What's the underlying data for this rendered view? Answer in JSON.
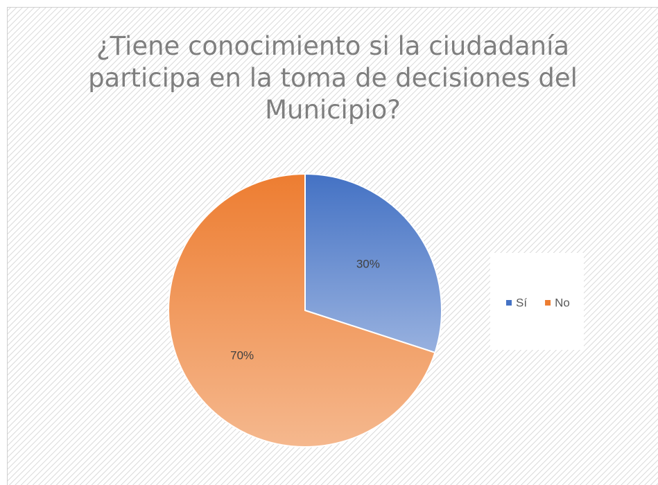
{
  "chart_data": {
    "type": "pie",
    "title": "¿Tiene conocimiento si la ciudadanía participa en la toma de decisiones del Municipio?",
    "categories": [
      "Sí",
      "No"
    ],
    "values": [
      30,
      70
    ],
    "value_labels": [
      "30%",
      "70%"
    ],
    "colors": [
      "#4472c4",
      "#ed7d31"
    ],
    "legend": "right"
  }
}
